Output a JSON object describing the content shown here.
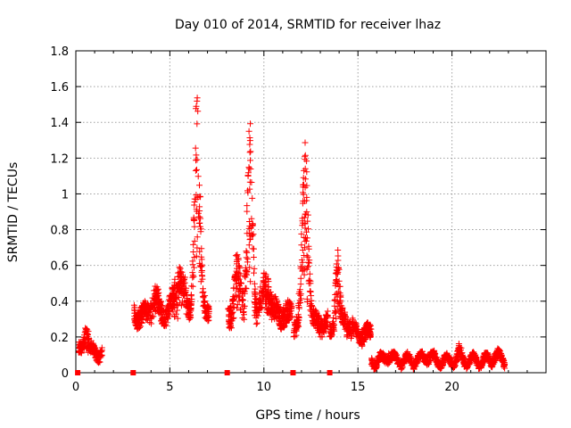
{
  "chart_data": {
    "type": "scatter",
    "title": "Day 010 of 2014, SRMTID for receiver lhaz",
    "xlabel": "GPS time / hours",
    "ylabel": "SRMTID / TECUs",
    "xlim": [
      0,
      25
    ],
    "ylim": [
      0,
      1.8
    ],
    "xticks": [
      0,
      5,
      10,
      15,
      20
    ],
    "yticks": [
      0,
      0.2,
      0.4,
      0.6,
      0.8,
      1,
      1.2,
      1.4,
      1.6,
      1.8
    ],
    "grid": true,
    "marker": "+",
    "marker_color": "#ff0000",
    "gap_markers_x": [
      0.1,
      3.05,
      8.05,
      11.55,
      13.5
    ],
    "series": [
      {
        "name": "SRMTID",
        "segments": [
          {
            "x0": 0.15,
            "x1": 1.4,
            "base": 0.1,
            "amp": 0.06,
            "peaks": [
              [
                0.55,
                0.18,
                0.25
              ]
            ]
          },
          {
            "x0": 3.1,
            "x1": 7.1,
            "base": 0.3,
            "amp": 0.1,
            "peaks": [
              [
                4.2,
                0.12,
                0.4
              ],
              [
                5.5,
                0.25,
                0.6
              ],
              [
                6.45,
                1.3,
                0.3
              ],
              [
                6.8,
                0.1,
                0.2
              ]
            ]
          },
          {
            "x0": 8.1,
            "x1": 11.5,
            "base": 0.3,
            "amp": 0.12,
            "peaks": [
              [
                8.6,
                0.3,
                0.35
              ],
              [
                9.25,
                1.05,
                0.3
              ],
              [
                10.1,
                0.2,
                0.5
              ]
            ]
          },
          {
            "x0": 11.6,
            "x1": 13.4,
            "base": 0.25,
            "amp": 0.1,
            "peaks": [
              [
                12.2,
                1.0,
                0.35
              ]
            ]
          },
          {
            "x0": 13.5,
            "x1": 15.7,
            "base": 0.2,
            "amp": 0.08,
            "peaks": [
              [
                13.9,
                0.45,
                0.25
              ],
              [
                14.4,
                0.1,
                0.5
              ]
            ]
          },
          {
            "x0": 15.7,
            "x1": 22.8,
            "base": 0.06,
            "amp": 0.04,
            "peaks": [
              [
                16.6,
                0.05,
                0.3
              ],
              [
                18.7,
                0.04,
                0.4
              ],
              [
                20.4,
                0.06,
                0.2
              ],
              [
                22.3,
                0.04,
                0.3
              ]
            ]
          }
        ]
      }
    ]
  }
}
